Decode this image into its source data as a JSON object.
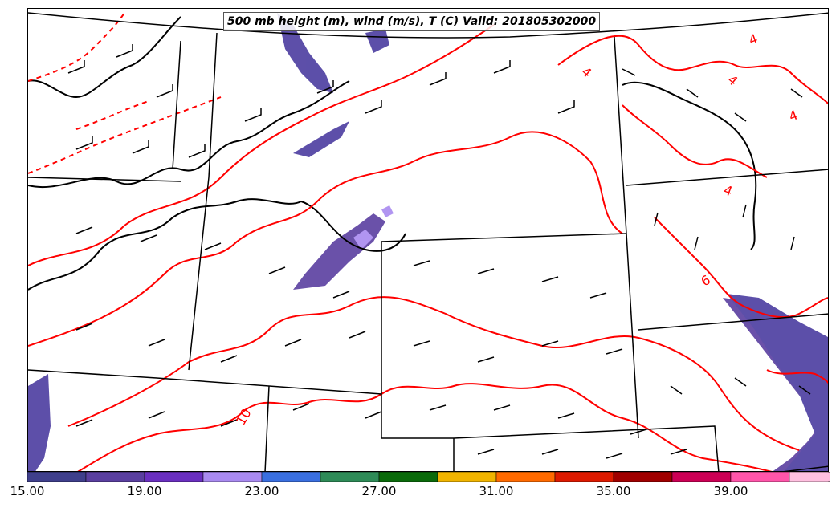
{
  "title": "500 mb height (m), wind (m/s), T (C) Valid: 201805302000",
  "contour_labels": [
    "4",
    "4",
    "4",
    "4",
    "4",
    "6",
    "10"
  ],
  "colorbar": {
    "ticks": [
      "15.00",
      "19.00",
      "23.00",
      "27.00",
      "31.00",
      "35.00",
      "39.00"
    ],
    "colors": [
      "#3f3f8c",
      "#5a3fa0",
      "#6a2fc0",
      "#a98af0",
      "#3a6fe0",
      "#2e8b57",
      "#0a6a0a",
      "#f0b400",
      "#ff6a00",
      "#dd1a00",
      "#a00000",
      "#cc0055",
      "#ff55aa",
      "#ffc0e0"
    ]
  },
  "colors": {
    "temperature_contour": "#ff0000",
    "height_contour": "#000000",
    "wind_shading": "#4b3ca0"
  }
}
